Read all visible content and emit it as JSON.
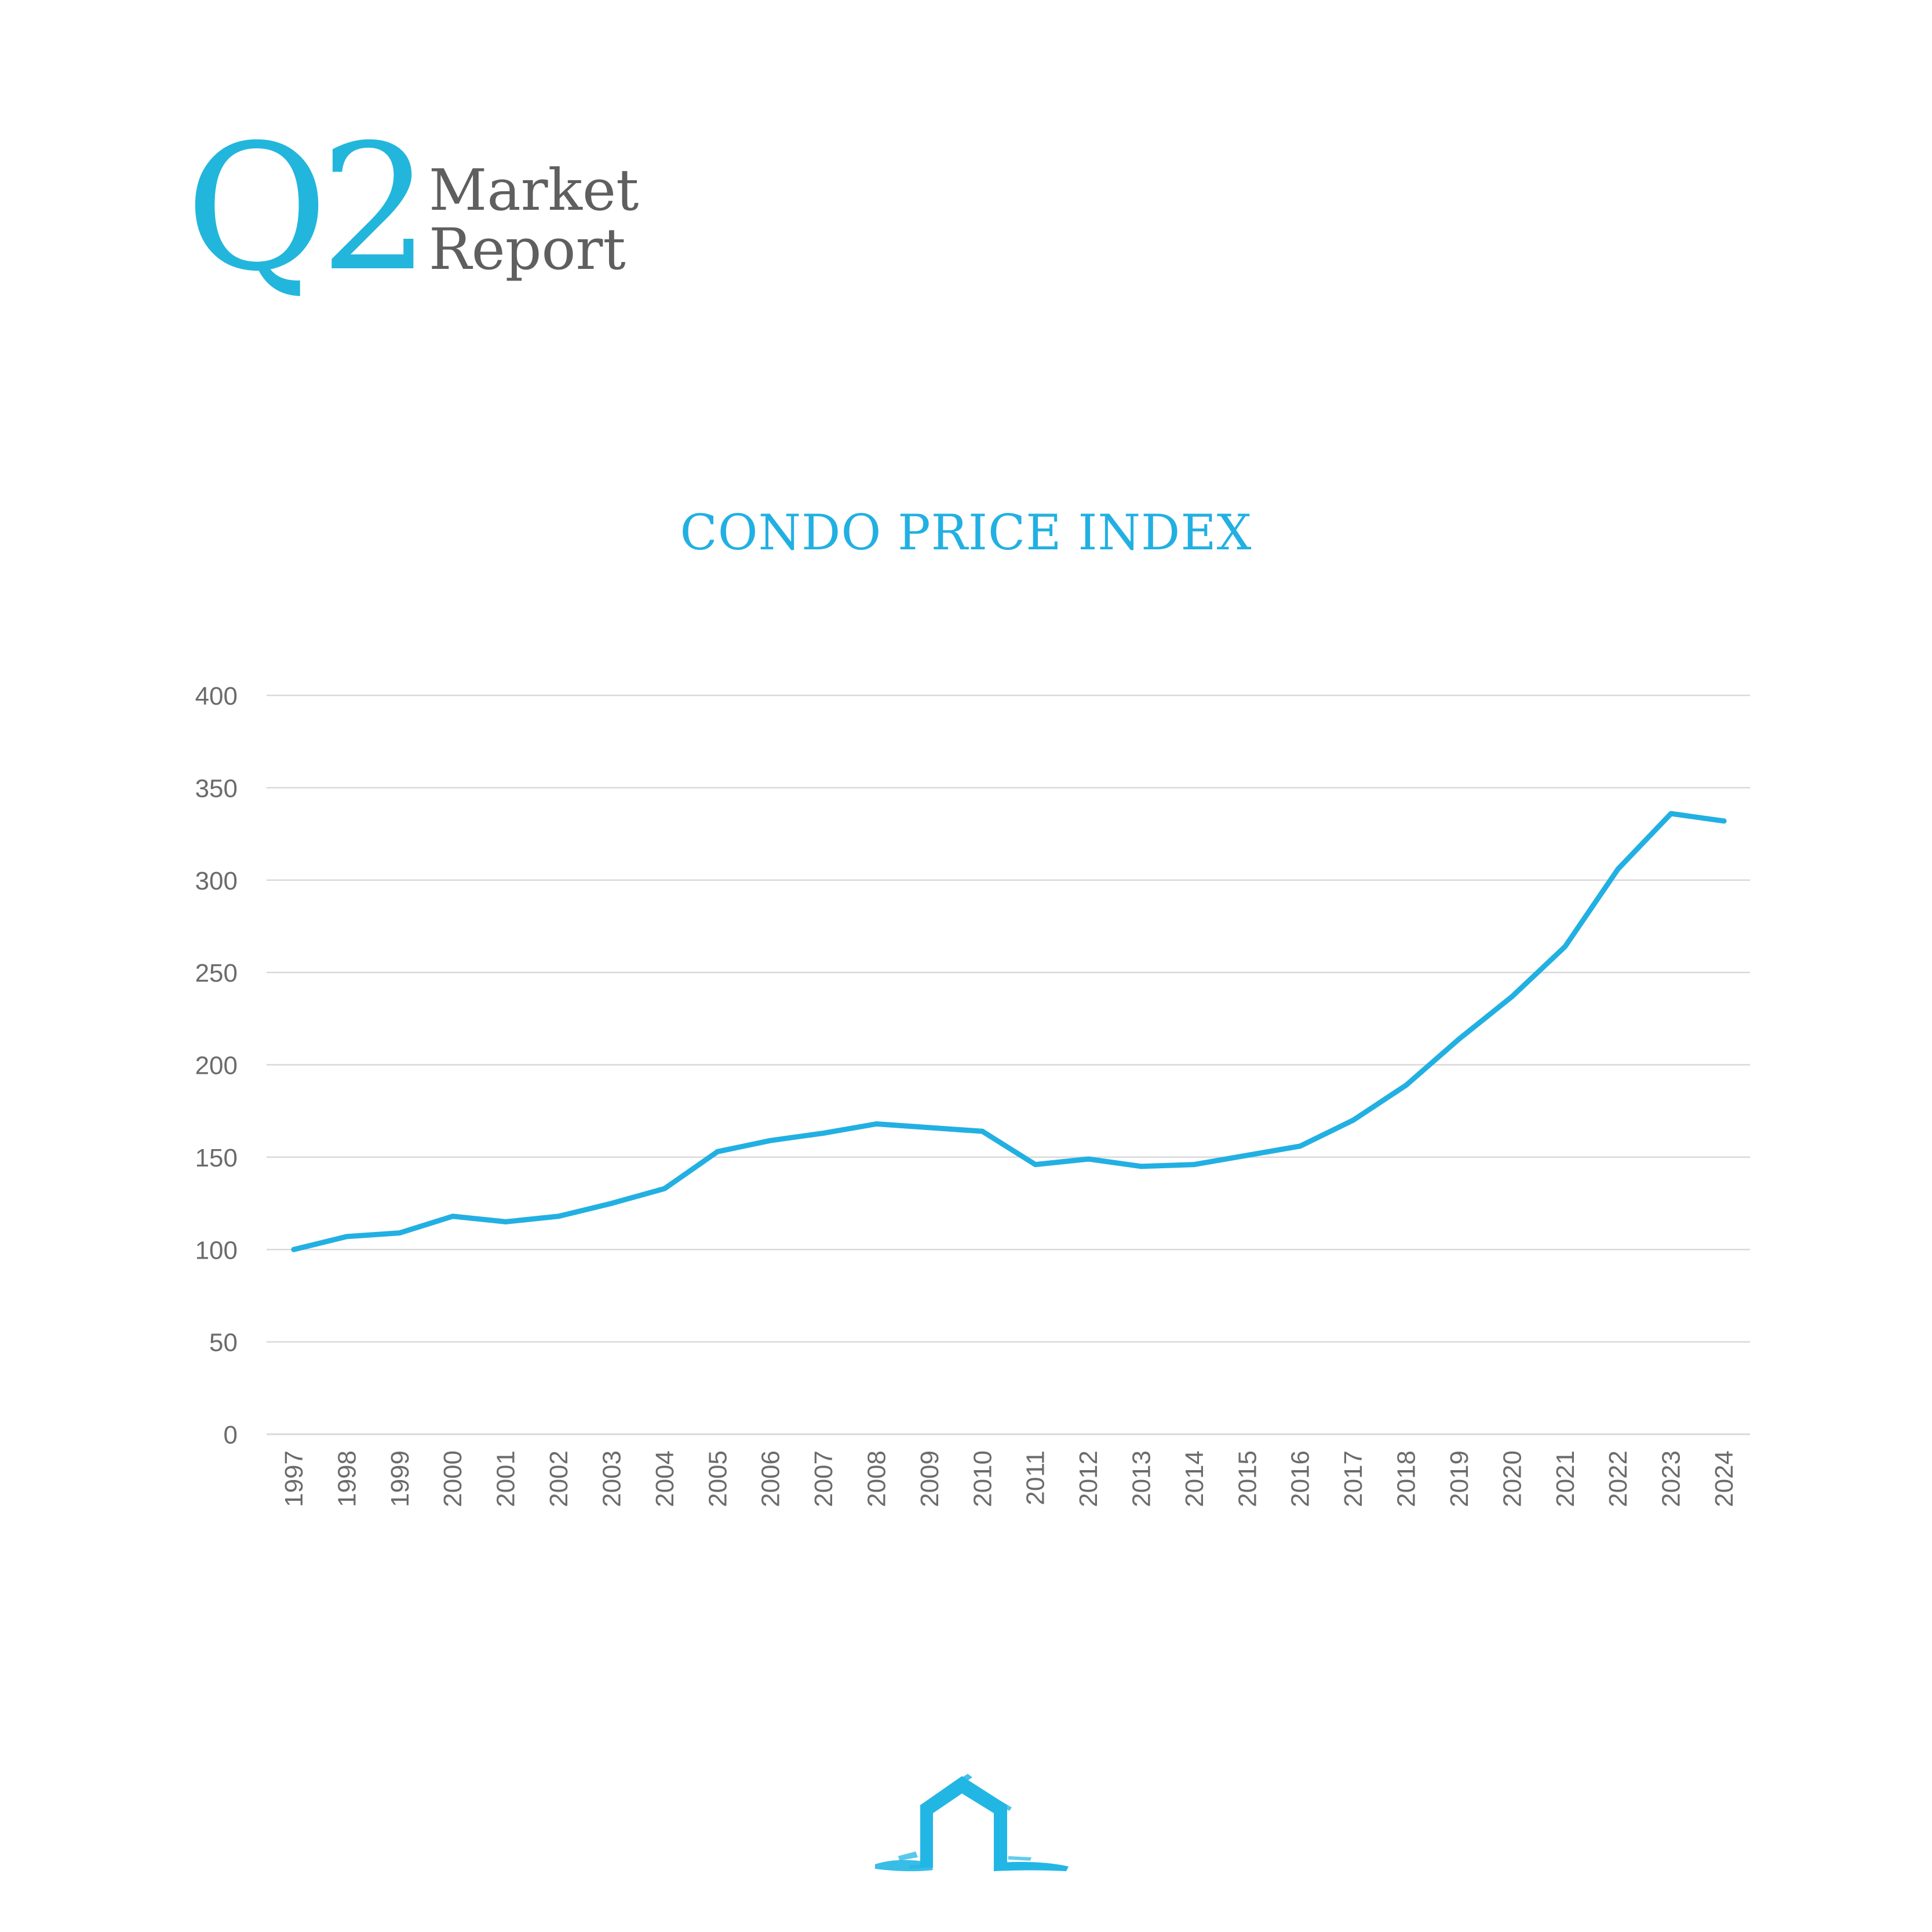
{
  "header": {
    "quarter": "Q2",
    "line1": "Market",
    "line2": "Report"
  },
  "colors": {
    "accent": "#22b0e2",
    "text_gray": "#5f5f5f",
    "axis_text": "#6b6b6b",
    "grid": "#d9d9d9"
  },
  "chart_data": {
    "type": "line",
    "title": "CONDO PRICE INDEX",
    "xlabel": "",
    "ylabel": "",
    "ylim": [
      0,
      400
    ],
    "yticks": [
      0,
      50,
      100,
      150,
      200,
      250,
      300,
      350,
      400
    ],
    "grid": true,
    "legend": "none",
    "categories": [
      "1997",
      "1998",
      "1999",
      "2000",
      "2001",
      "2002",
      "2003",
      "2004",
      "2005",
      "2006",
      "2007",
      "2008",
      "2009",
      "2010",
      "2011",
      "2012",
      "2013",
      "2014",
      "2015",
      "2016",
      "2017",
      "2018",
      "2019",
      "2020",
      "2021",
      "2022",
      "2023",
      "2024"
    ],
    "series": [
      {
        "name": "",
        "color": "#22b0e2",
        "values": [
          100,
          107,
          109,
          118,
          115,
          118,
          125,
          133,
          153,
          159,
          163,
          168,
          166,
          164,
          146,
          149,
          145,
          146,
          151,
          156,
          170,
          189,
          214,
          237,
          264,
          306,
          336,
          332
        ]
      }
    ]
  },
  "logo": {
    "icon": "house-brushstroke-icon"
  }
}
